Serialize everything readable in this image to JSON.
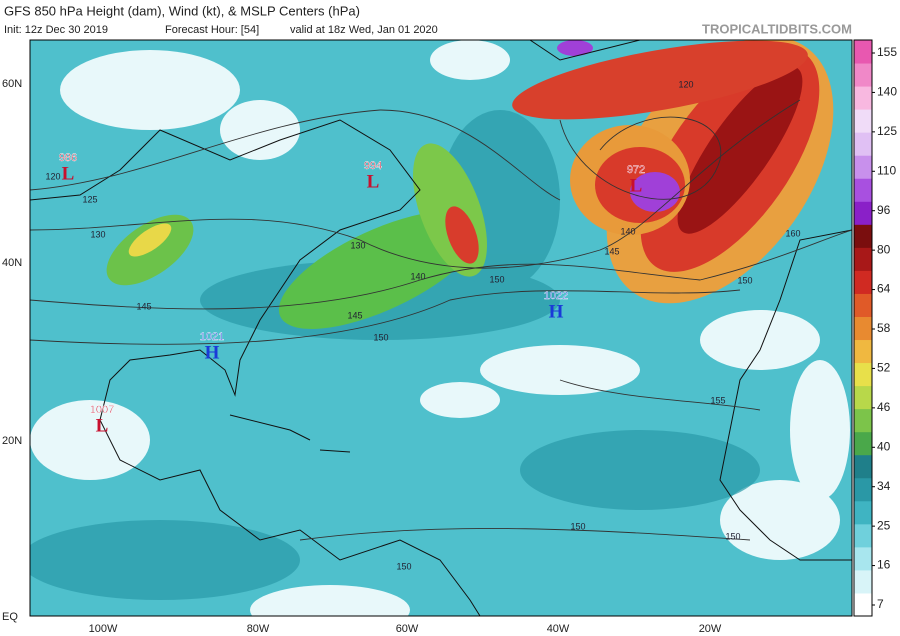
{
  "header": {
    "title": "GFS 850 hPa Height (dam), Wind (kt), & MSLP Centers (hPa)",
    "init": "Init: 12z Dec 30 2019",
    "forecast_hour": "Forecast Hour: [54]",
    "valid": "valid at 18z Wed, Jan 01 2020",
    "source": "TROPICALTIDBITS.COM"
  },
  "lat_labels": [
    "60N",
    "40N",
    "20N",
    "EQ"
  ],
  "lon_labels": [
    "100W",
    "80W",
    "60W",
    "40W",
    "20W"
  ],
  "pressure_centers": [
    {
      "value": 986,
      "symbol": "L"
    },
    {
      "value": 994,
      "symbol": "L"
    },
    {
      "value": 972,
      "symbol": "L"
    },
    {
      "value": 1022,
      "symbol": "H"
    },
    {
      "value": 1021,
      "symbol": "H"
    },
    {
      "value": 1007,
      "symbol": "L"
    }
  ],
  "contour_labels": [
    120,
    125,
    130,
    130,
    140,
    145,
    150,
    150,
    145,
    140,
    150,
    155,
    120,
    160,
    150,
    150,
    150,
    145
  ],
  "colorbar": {
    "ticks": [
      155,
      140,
      125,
      110,
      96,
      80,
      64,
      58,
      52,
      46,
      40,
      34,
      25,
      16,
      7
    ]
  }
}
